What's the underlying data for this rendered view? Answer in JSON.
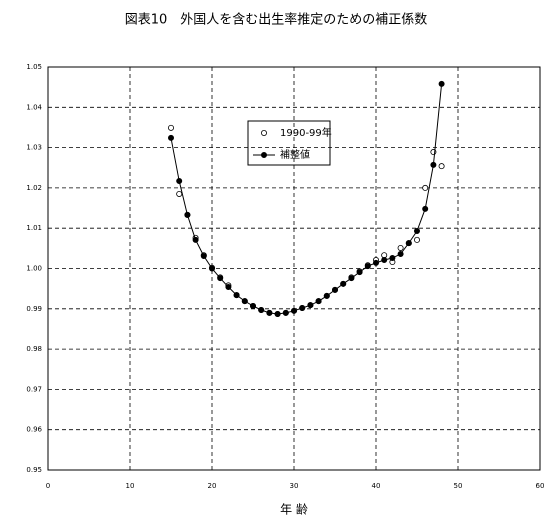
{
  "chart_data": {
    "type": "line",
    "title": "図表10　外国人を含む出生率推定のための補正係数",
    "x_label": "年 齢",
    "x": [
      15,
      16,
      17,
      18,
      19,
      20,
      21,
      22,
      23,
      24,
      25,
      26,
      27,
      28,
      29,
      30,
      31,
      32,
      33,
      34,
      35,
      36,
      37,
      38,
      39,
      40,
      41,
      42,
      43,
      44,
      45,
      46,
      47,
      48
    ],
    "series": [
      {
        "name": "1990-99年",
        "color": "#000000",
        "marker": "open",
        "values": [
          1.0349,
          1.0185,
          1.0133,
          1.0076,
          1.0033,
          1.0002,
          0.9978,
          0.9958,
          0.9934,
          0.9919,
          0.9907,
          0.9897,
          0.989,
          0.9887,
          0.989,
          0.9895,
          0.9902,
          0.9909,
          0.9919,
          0.9932,
          0.9947,
          0.9962,
          0.9978,
          0.9993,
          1.0008,
          1.0021,
          1.0033,
          1.0016,
          1.0051,
          1.0063,
          1.0071,
          1.02,
          1.0289,
          1.0254
        ]
      },
      {
        "name": "補整値",
        "color": "#000000",
        "marker": "filled",
        "values": [
          1.0324,
          1.0217,
          1.0133,
          1.0071,
          1.0031,
          1.0,
          0.9976,
          0.9954,
          0.9934,
          0.9919,
          0.9907,
          0.9897,
          0.989,
          0.9887,
          0.989,
          0.9895,
          0.9902,
          0.9909,
          0.9919,
          0.9932,
          0.9947,
          0.9962,
          0.9976,
          0.9991,
          1.0006,
          1.0014,
          1.0021,
          1.0026,
          1.0036,
          1.0063,
          1.0093,
          1.0148,
          1.0257,
          1.0458
        ]
      }
    ],
    "xlim": [
      0,
      60
    ],
    "xticks": [
      0,
      10,
      20,
      30,
      40,
      50,
      60
    ],
    "ylim": [
      0.95,
      1.05
    ],
    "yticks": [
      0.95,
      0.96,
      0.97,
      0.98,
      0.99,
      {
        "value": 1,
        "label": "1.00"
      },
      1.01,
      1.02,
      1.03,
      1.04,
      1.05
    ],
    "grid": true
  }
}
